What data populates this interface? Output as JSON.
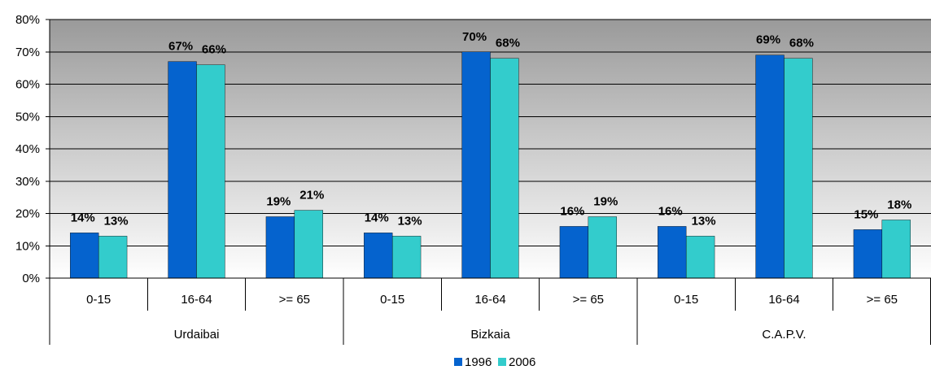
{
  "chart_data": {
    "type": "bar",
    "title": "",
    "xlabel": "",
    "ylabel": "",
    "ylim": [
      0,
      80
    ],
    "y_ticks": [
      "0%",
      "10%",
      "20%",
      "30%",
      "40%",
      "50%",
      "60%",
      "70%",
      "80%"
    ],
    "y_tick_values": [
      0,
      10,
      20,
      30,
      40,
      50,
      60,
      70,
      80
    ],
    "grid": true,
    "legend_position": "bottom",
    "groups": [
      {
        "name": "Urdaibai",
        "categories": [
          "0-15",
          "16-64",
          ">= 65"
        ]
      },
      {
        "name": "Bizkaia",
        "categories": [
          "0-15",
          "16-64",
          ">= 65"
        ]
      },
      {
        "name": "C.A.P.V.",
        "categories": [
          "0-15",
          "16-64",
          ">= 65"
        ]
      }
    ],
    "series": [
      {
        "name": "1996",
        "color": "#0563CE",
        "values": [
          14,
          67,
          19,
          14,
          70,
          16,
          16,
          69,
          15
        ],
        "labels": [
          "14%",
          "67%",
          "19%",
          "14%",
          "70%",
          "16%",
          "16%",
          "69%",
          "15%"
        ]
      },
      {
        "name": "2006",
        "color": "#33CCCC",
        "values": [
          13,
          66,
          21,
          13,
          68,
          19,
          13,
          68,
          18
        ],
        "labels": [
          "13%",
          "66%",
          "21%",
          "13%",
          "68%",
          "19%",
          "13%",
          "68%",
          "18%"
        ]
      }
    ]
  }
}
